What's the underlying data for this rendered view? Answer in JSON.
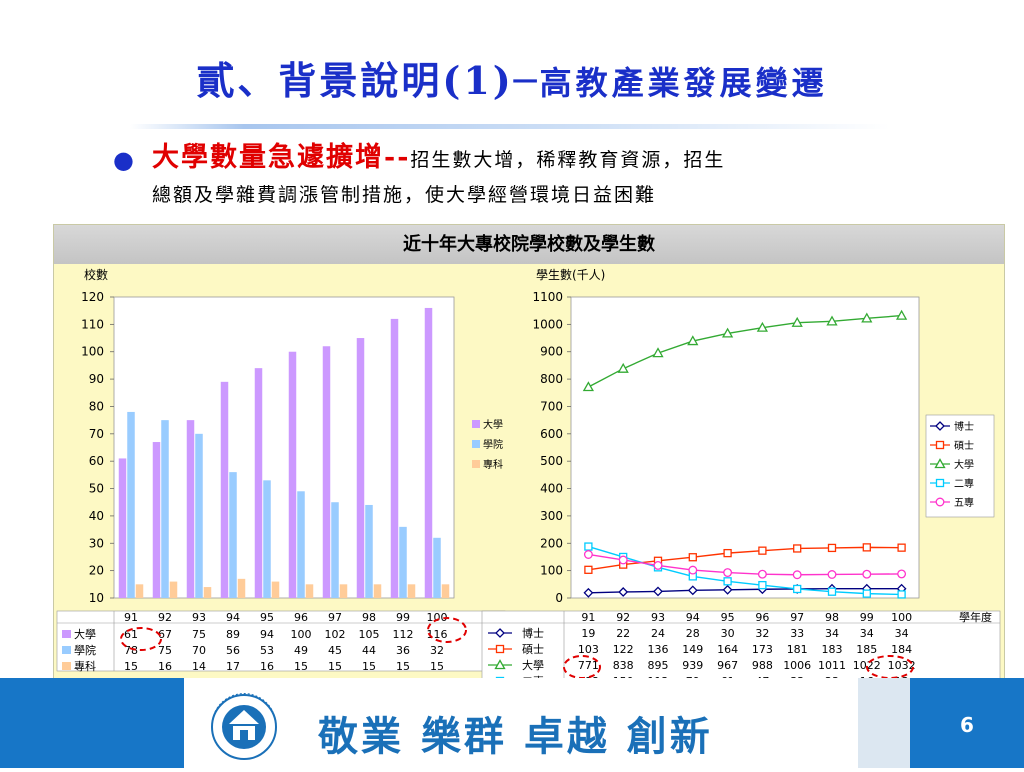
{
  "slide": {
    "title_main": "貳、背景說明(1)─",
    "title_sub": "高教產業發展變遷",
    "bullet_highlight": "大學數量急遽擴增--",
    "bullet_rest": "招生數大增，稀釋教育資源，招生",
    "bullet_line2": "總額及學雜費調漲管制措施，使大學經營環境日益困難",
    "figure_title": "近十年大專校院學校數及學生數",
    "footer_slogan": "敬業  樂群  卓越  創新",
    "page_number": "6"
  },
  "colors": {
    "title": "#1a2fc8",
    "highlight": "#e00000",
    "footer_blue": "#1776c7",
    "figure_bg": "#fdf9c4"
  },
  "chart_data": [
    {
      "type": "bar",
      "ylabel": "校數",
      "ylim": [
        10,
        120
      ],
      "yticks": [
        10,
        20,
        30,
        40,
        50,
        60,
        70,
        80,
        90,
        100,
        110,
        120
      ],
      "categories": [
        "91",
        "92",
        "93",
        "94",
        "95",
        "96",
        "97",
        "98",
        "99",
        "100"
      ],
      "series": [
        {
          "name": "大學",
          "color": "#cc99ff",
          "values": [
            61,
            67,
            75,
            89,
            94,
            100,
            102,
            105,
            112,
            116
          ]
        },
        {
          "name": "學院",
          "color": "#99ccff",
          "values": [
            78,
            75,
            70,
            56,
            53,
            49,
            45,
            44,
            36,
            32
          ]
        },
        {
          "name": "專科",
          "color": "#ffcc99",
          "values": [
            15,
            16,
            14,
            17,
            16,
            15,
            15,
            15,
            15,
            15
          ]
        }
      ],
      "legend": "right"
    },
    {
      "type": "line",
      "ylabel": "學生數(千人)",
      "xlabel": "學年度",
      "ylim": [
        0,
        1100
      ],
      "yticks": [
        0,
        100,
        200,
        300,
        400,
        500,
        600,
        700,
        800,
        900,
        1000,
        1100
      ],
      "categories": [
        "91",
        "92",
        "93",
        "94",
        "95",
        "96",
        "97",
        "98",
        "99",
        "100"
      ],
      "series": [
        {
          "name": "博士",
          "color": "#000080",
          "marker": "diamond",
          "values": [
            19,
            22,
            24,
            28,
            30,
            32,
            33,
            34,
            34,
            34
          ]
        },
        {
          "name": "碩士",
          "color": "#ff3300",
          "marker": "square",
          "values": [
            103,
            122,
            136,
            149,
            164,
            173,
            181,
            183,
            185,
            184
          ]
        },
        {
          "name": "大學",
          "color": "#33aa33",
          "marker": "triangle",
          "values": [
            771,
            838,
            895,
            939,
            967,
            988,
            1006,
            1011,
            1022,
            1032
          ]
        },
        {
          "name": "二專",
          "color": "#00ccff",
          "marker": "square",
          "values": [
            188,
            150,
            112,
            79,
            61,
            47,
            33,
            23,
            16,
            13
          ]
        },
        {
          "name": "五專",
          "color": "#ff33cc",
          "marker": "circle",
          "values": [
            159,
            139,
            119,
            102,
            93,
            87,
            85,
            86,
            87,
            88
          ]
        }
      ],
      "legend": "right"
    }
  ]
}
